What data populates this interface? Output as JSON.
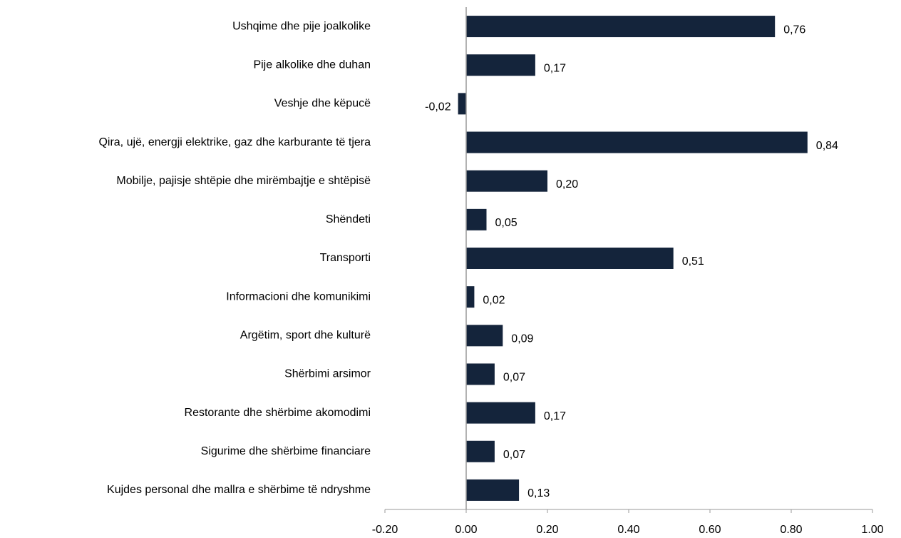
{
  "chart_data": {
    "type": "bar",
    "orientation": "horizontal",
    "categories": [
      "Ushqime dhe pije joalkolike",
      "Pije alkolike dhe duhan",
      "Veshje dhe këpucë",
      "Qira, ujë, energji elektrike, gaz dhe karburante të tjera",
      "Mobilje, pajisje shtëpie dhe mirëmbajtje e shtëpisë",
      "Shëndeti",
      "Transporti",
      "Informacioni dhe komunikimi",
      "Argëtim, sport dhe kulturë",
      "Shërbimi arsimor",
      "Restorante dhe shërbime akomodimi",
      "Sigurime dhe shërbime financiare",
      "Kujdes personal dhe mallra e shërbime të ndryshme"
    ],
    "values": [
      0.76,
      0.17,
      -0.02,
      0.84,
      0.2,
      0.05,
      0.51,
      0.02,
      0.09,
      0.07,
      0.17,
      0.07,
      0.13
    ],
    "value_labels": [
      "0,76",
      "0,17",
      "-0,02",
      "0,84",
      "0,20",
      "0,05",
      "0,51",
      "0,02",
      "0,09",
      "0,07",
      "0,17",
      "0,07",
      "0,13"
    ],
    "color": "#14243b",
    "xlim": [
      -0.2,
      1.0
    ],
    "xticks": [
      {
        "value": -0.2,
        "label": "-0.20"
      },
      {
        "value": 0,
        "label": "0.00"
      },
      {
        "value": 0.2,
        "label": "0.20"
      },
      {
        "value": 0.4,
        "label": "0.40"
      },
      {
        "value": 0.6,
        "label": "0.60"
      },
      {
        "value": 0.8,
        "label": "0.80"
      },
      {
        "value": 1.0,
        "label": "1.00"
      }
    ],
    "grid": false
  }
}
